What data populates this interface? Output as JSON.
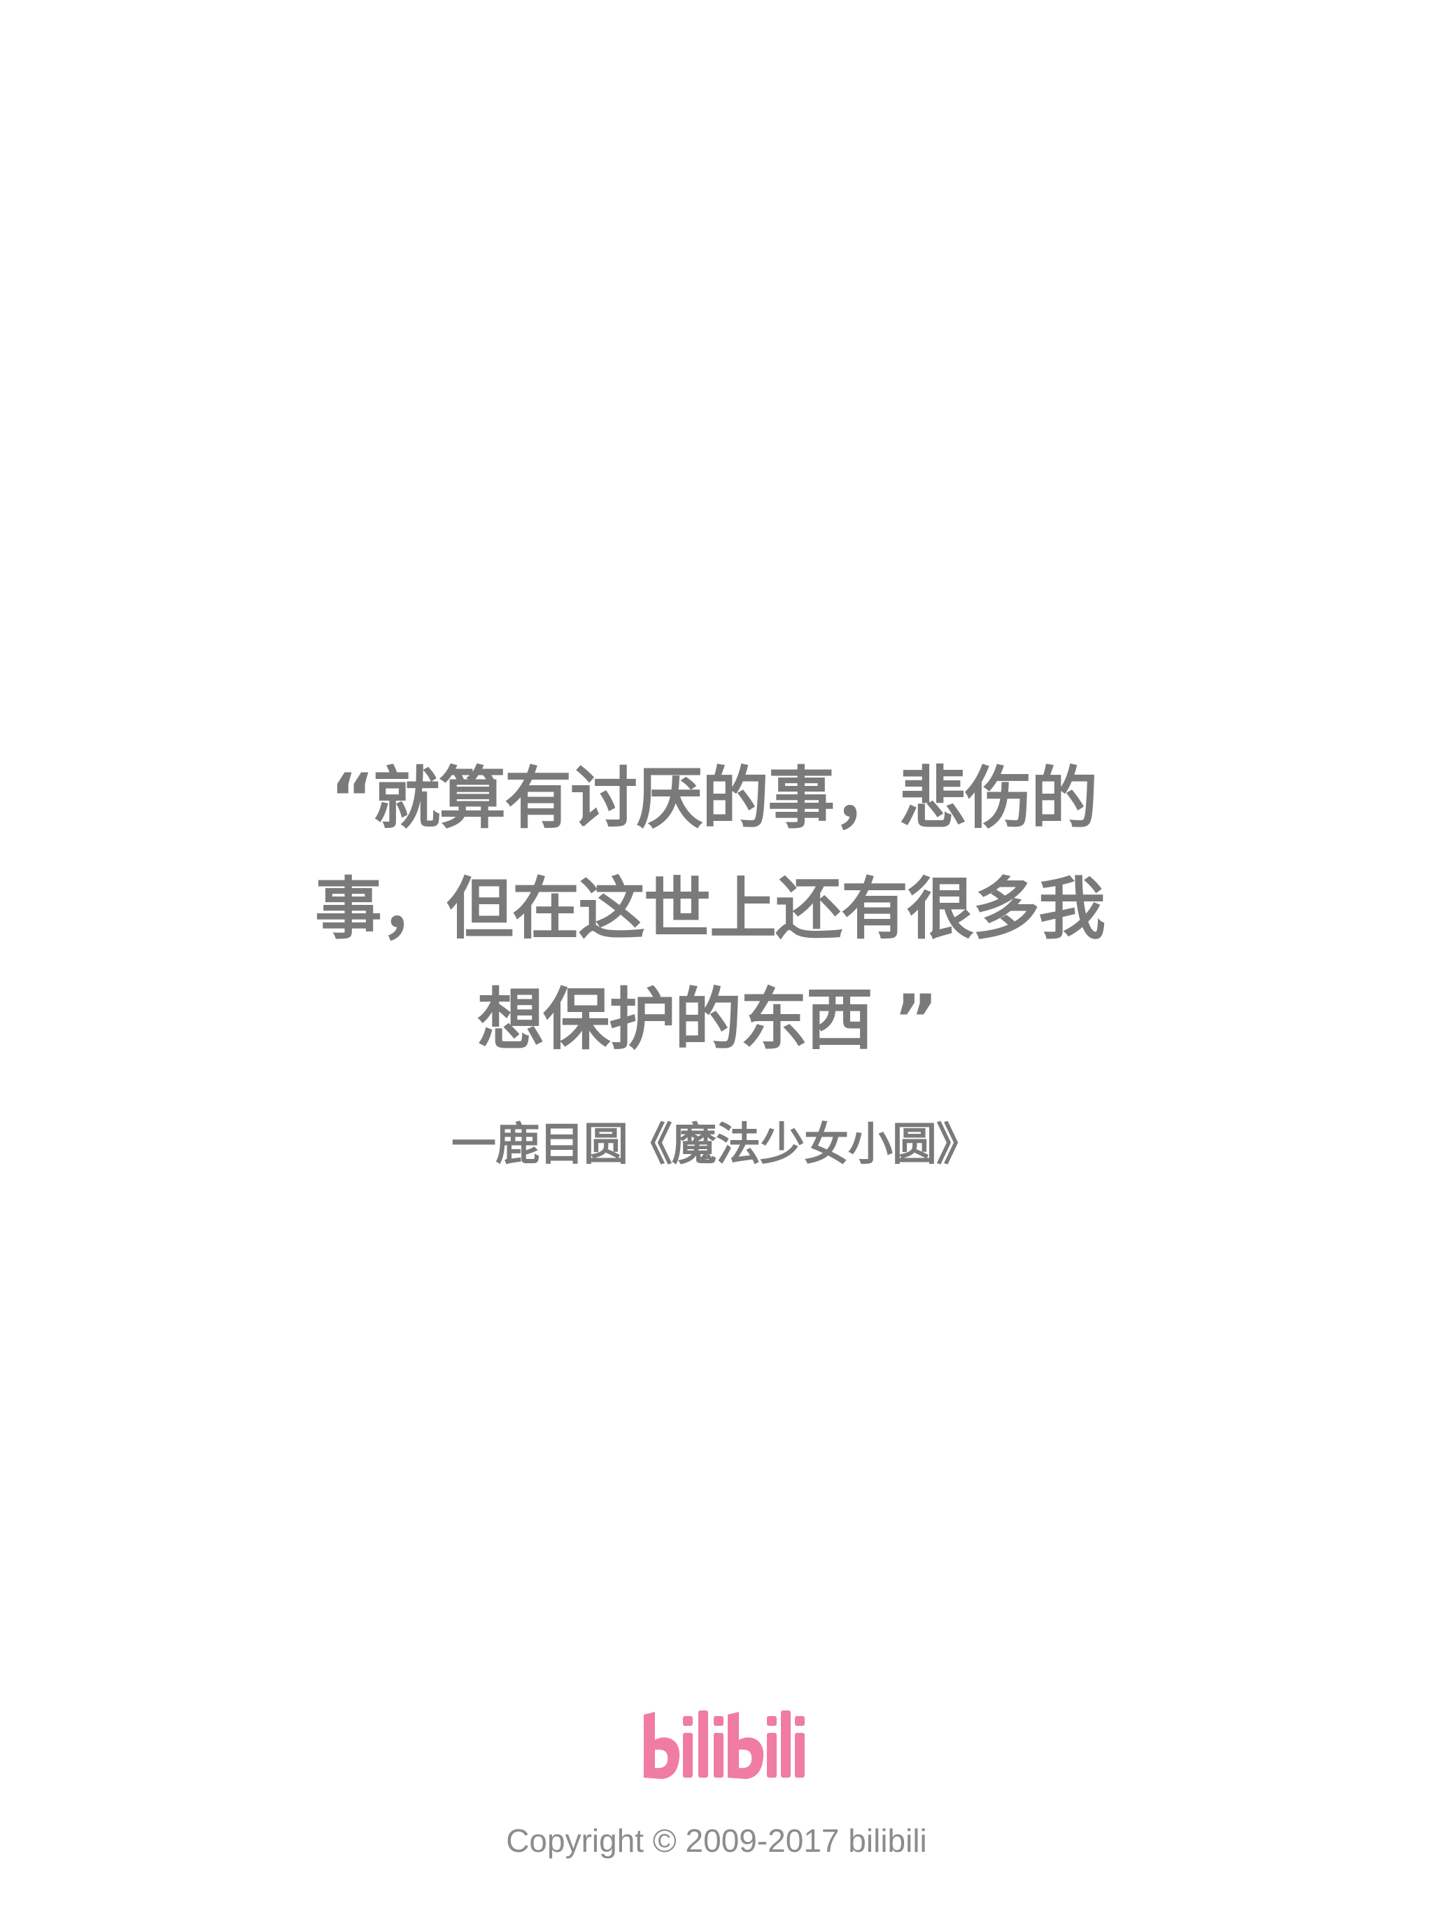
{
  "quote": {
    "line1": "“就算有讨厌的事，悲伤的",
    "line2": "事，但在这世上还有很多我",
    "line3": "想保护的东西 ”"
  },
  "attribution": "一鹿目圆《魔法少女小圆》",
  "logo": {
    "text": "bilibili",
    "color": "#f07ca3"
  },
  "copyright": "Copyright © 2009-2017 bilibili"
}
